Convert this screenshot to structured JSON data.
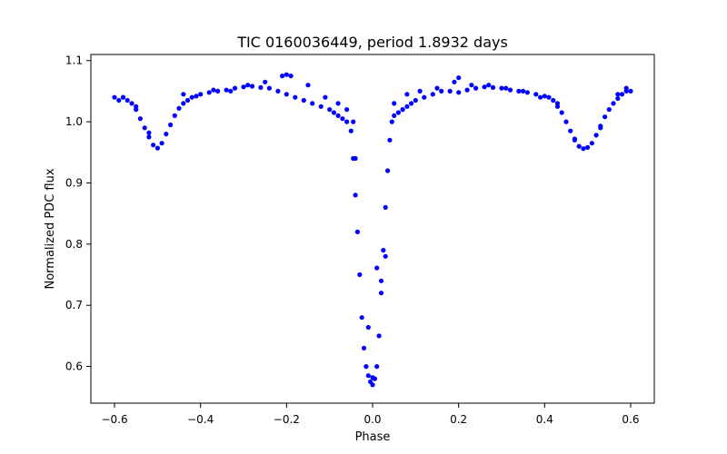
{
  "chart_data": {
    "type": "scatter",
    "title": "TIC 0160036449, period 1.8932 days",
    "xlabel": "Phase",
    "ylabel": "Normalized PDC flux",
    "xlim": [
      -0.655,
      0.655
    ],
    "ylim": [
      0.54,
      1.11
    ],
    "xticks": [
      -0.6,
      -0.4,
      -0.2,
      0.0,
      0.2,
      0.4,
      0.6
    ],
    "xtick_labels": [
      "−0.6",
      "−0.4",
      "−0.2",
      "0.0",
      "0.2",
      "0.4",
      "0.6"
    ],
    "yticks": [
      0.6,
      0.7,
      0.8,
      0.9,
      1.0,
      1.1
    ],
    "ytick_labels": [
      "0.6",
      "0.7",
      "0.8",
      "0.9",
      "1.0",
      "1.1"
    ],
    "grid": false,
    "marker_color": "#0000ff",
    "series": [
      {
        "x": [
          -0.6,
          -0.59,
          -0.58,
          -0.57,
          -0.56,
          -0.55,
          -0.54,
          -0.53,
          -0.52,
          -0.51,
          -0.5,
          -0.49,
          -0.48,
          -0.47,
          -0.46,
          -0.45,
          -0.44,
          -0.43,
          -0.42,
          -0.41,
          -0.4,
          -0.38,
          -0.36,
          -0.34,
          -0.32,
          -0.3,
          -0.28,
          -0.26,
          -0.24,
          -0.22,
          -0.2,
          -0.18,
          -0.16,
          -0.14,
          -0.12,
          -0.1,
          -0.09,
          -0.08,
          -0.07,
          -0.06,
          -0.05,
          -0.045,
          -0.04,
          -0.035,
          -0.03,
          -0.025,
          -0.02,
          -0.015,
          -0.01,
          -0.005,
          0.0,
          0.005,
          0.01,
          0.015,
          0.02,
          0.025,
          0.03,
          0.035,
          0.04,
          0.045,
          0.05,
          0.06,
          0.07,
          0.08,
          0.09,
          0.1,
          0.12,
          0.14,
          0.16,
          0.18,
          0.2,
          0.22,
          0.24,
          0.26,
          0.28,
          0.3,
          0.32,
          0.34,
          0.36,
          0.38,
          0.4,
          0.41,
          0.42,
          0.43,
          0.44,
          0.45,
          0.46,
          0.47,
          0.48,
          0.49,
          0.5,
          0.51,
          0.52,
          0.53,
          0.54,
          0.55,
          0.56,
          0.57,
          0.58,
          0.59,
          0.6,
          -0.58,
          -0.55,
          -0.52,
          -0.44,
          -0.37,
          -0.33,
          -0.29,
          -0.25,
          -0.21,
          -0.2,
          -0.19,
          -0.15,
          -0.11,
          -0.08,
          -0.06,
          -0.045,
          -0.04,
          -0.01,
          0.0,
          0.01,
          0.02,
          0.03,
          0.05,
          0.08,
          0.11,
          0.15,
          0.19,
          0.2,
          0.23,
          0.27,
          0.31,
          0.35,
          0.39,
          0.43,
          0.47,
          0.53,
          0.57,
          0.59
        ],
        "y": [
          1.04,
          1.035,
          1.04,
          1.035,
          1.03,
          1.02,
          1.005,
          0.99,
          0.975,
          0.962,
          0.957,
          0.965,
          0.98,
          0.995,
          1.01,
          1.022,
          1.03,
          1.035,
          1.04,
          1.042,
          1.045,
          1.048,
          1.05,
          1.052,
          1.055,
          1.057,
          1.058,
          1.056,
          1.055,
          1.05,
          1.045,
          1.04,
          1.035,
          1.03,
          1.025,
          1.02,
          1.015,
          1.01,
          1.005,
          1.0,
          0.985,
          0.94,
          0.88,
          0.82,
          0.75,
          0.68,
          0.63,
          0.6,
          0.585,
          0.575,
          0.57,
          0.58,
          0.6,
          0.65,
          0.72,
          0.79,
          0.86,
          0.92,
          0.97,
          1.0,
          1.01,
          1.015,
          1.02,
          1.025,
          1.03,
          1.035,
          1.04,
          1.045,
          1.05,
          1.05,
          1.048,
          1.052,
          1.055,
          1.057,
          1.056,
          1.055,
          1.052,
          1.05,
          1.048,
          1.045,
          1.042,
          1.04,
          1.035,
          1.025,
          1.015,
          1.0,
          0.985,
          0.97,
          0.96,
          0.956,
          0.958,
          0.965,
          0.978,
          0.993,
          1.008,
          1.02,
          1.03,
          1.038,
          1.045,
          1.05,
          1.05,
          1.04,
          1.025,
          0.982,
          1.045,
          1.052,
          1.05,
          1.06,
          1.065,
          1.075,
          1.077,
          1.075,
          1.06,
          1.04,
          1.03,
          1.02,
          1.0,
          0.94,
          0.664,
          0.582,
          0.761,
          0.74,
          0.78,
          1.03,
          1.045,
          1.05,
          1.055,
          1.065,
          1.072,
          1.06,
          1.06,
          1.055,
          1.05,
          1.04,
          1.03,
          0.972,
          0.99,
          1.045,
          1.055
        ]
      }
    ]
  }
}
